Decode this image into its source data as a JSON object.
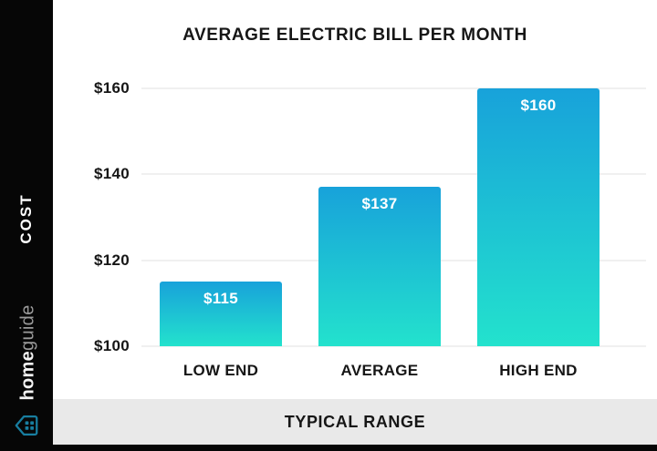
{
  "page": {
    "title": "AVERAGE ELECTRIC BILL PER MONTH",
    "footer_label": "TYPICAL RANGE"
  },
  "sidebar": {
    "cost_label": "COST",
    "brand_home": "home",
    "brand_guide": "guide",
    "logo_icon": "homeguide-house-icon"
  },
  "chart_data": {
    "type": "bar",
    "title": "AVERAGE ELECTRIC BILL PER MONTH",
    "categories": [
      "LOW END",
      "AVERAGE",
      "HIGH END"
    ],
    "values": [
      115,
      137,
      160
    ],
    "value_labels": [
      "$115",
      "$137",
      "$160"
    ],
    "xlabel": "TYPICAL RANGE",
    "ylabel": "COST",
    "ylim": [
      100,
      160
    ],
    "y_tick_values": [
      160,
      140,
      120,
      100
    ],
    "y_tick_labels": [
      "$160",
      "$140",
      "$120",
      "$100"
    ],
    "grid": true,
    "legend": false,
    "colors": {
      "bar_gradient_top": "#18a2da",
      "bar_gradient_bottom": "#23e2cd",
      "grid_line": "#f0f0f0",
      "axis_text": "#161616",
      "value_label": "#ffffff"
    }
  },
  "colors": {
    "sidebar_bg": "#060606",
    "footer_band_bg": "#e9e9e9",
    "bottom_strip": "#060606",
    "brand_home": "#f3f3f3",
    "brand_guide": "#9a9a9a",
    "logo_teal": "#187ea0"
  }
}
